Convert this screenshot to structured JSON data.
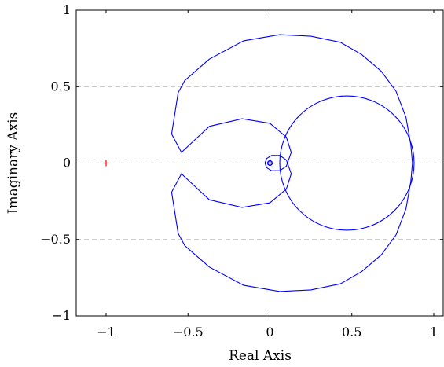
{
  "chart_data": {
    "type": "line",
    "title": "",
    "xlabel": "Real Axis",
    "ylabel": "Imaginary Axis",
    "xlim": [
      -1.2,
      1.05
    ],
    "ylim": [
      -1,
      1
    ],
    "x_ticks": [
      -1,
      -0.5,
      0,
      0.5,
      1
    ],
    "x_tick_labels": [
      "−1",
      "−0.5",
      "0",
      "0.5",
      "1"
    ],
    "y_ticks": [
      -1,
      -0.5,
      0,
      0.5,
      1
    ],
    "y_tick_labels": [
      "−1",
      "−0.5",
      "0",
      "0.5",
      "1"
    ],
    "grid": "horizontal dashed at y ticks",
    "colors": {
      "curve": "#0000ff",
      "critical_point": "#ff0000",
      "grid": "#bbbbbb"
    },
    "critical_point": {
      "x": -1,
      "y": 0,
      "marker": "+"
    },
    "series": [
      {
        "points": [
          [
            0.87,
            0.0
          ],
          [
            0.86,
            0.12
          ],
          [
            0.83,
            0.3
          ],
          [
            0.77,
            0.47
          ],
          [
            0.68,
            0.6
          ],
          [
            0.56,
            0.71
          ],
          [
            0.43,
            0.79
          ],
          [
            0.25,
            0.83
          ],
          [
            0.06,
            0.84
          ],
          [
            -0.16,
            0.8
          ],
          [
            -0.37,
            0.68
          ],
          [
            -0.52,
            0.54
          ],
          [
            -0.56,
            0.46
          ],
          [
            -0.6,
            0.19
          ],
          [
            -0.54,
            0.07
          ],
          [
            -0.37,
            0.24
          ],
          [
            -0.17,
            0.29
          ],
          [
            0.0,
            0.26
          ],
          [
            0.1,
            0.17
          ],
          [
            0.13,
            0.07
          ],
          [
            0.1,
            -0.02
          ],
          [
            0.06,
            -0.05
          ],
          [
            0.01,
            -0.05
          ],
          [
            -0.02,
            -0.03
          ],
          [
            -0.03,
            0.0
          ],
          [
            -0.02,
            0.03
          ],
          [
            0.01,
            0.05
          ],
          [
            0.06,
            0.05
          ],
          [
            0.1,
            0.02
          ],
          [
            0.13,
            -0.07
          ],
          [
            0.1,
            -0.17
          ],
          [
            0.0,
            -0.26
          ],
          [
            -0.17,
            -0.29
          ],
          [
            -0.37,
            -0.24
          ],
          [
            -0.54,
            -0.07
          ],
          [
            -0.6,
            -0.19
          ],
          [
            -0.56,
            -0.46
          ],
          [
            -0.52,
            -0.54
          ],
          [
            -0.37,
            -0.68
          ],
          [
            -0.16,
            -0.8
          ],
          [
            0.06,
            -0.84
          ],
          [
            0.25,
            -0.83
          ],
          [
            0.43,
            -0.79
          ],
          [
            0.56,
            -0.71
          ],
          [
            0.68,
            -0.6
          ],
          [
            0.77,
            -0.47
          ],
          [
            0.83,
            -0.3
          ],
          [
            0.86,
            -0.12
          ],
          [
            0.87,
            0.0
          ]
        ]
      },
      {
        "circle": {
          "cx": 0.47,
          "cy": 0.0,
          "r": 0.41
        }
      },
      {
        "spiral_center": [
          0.0,
          0.0
        ]
      }
    ]
  }
}
